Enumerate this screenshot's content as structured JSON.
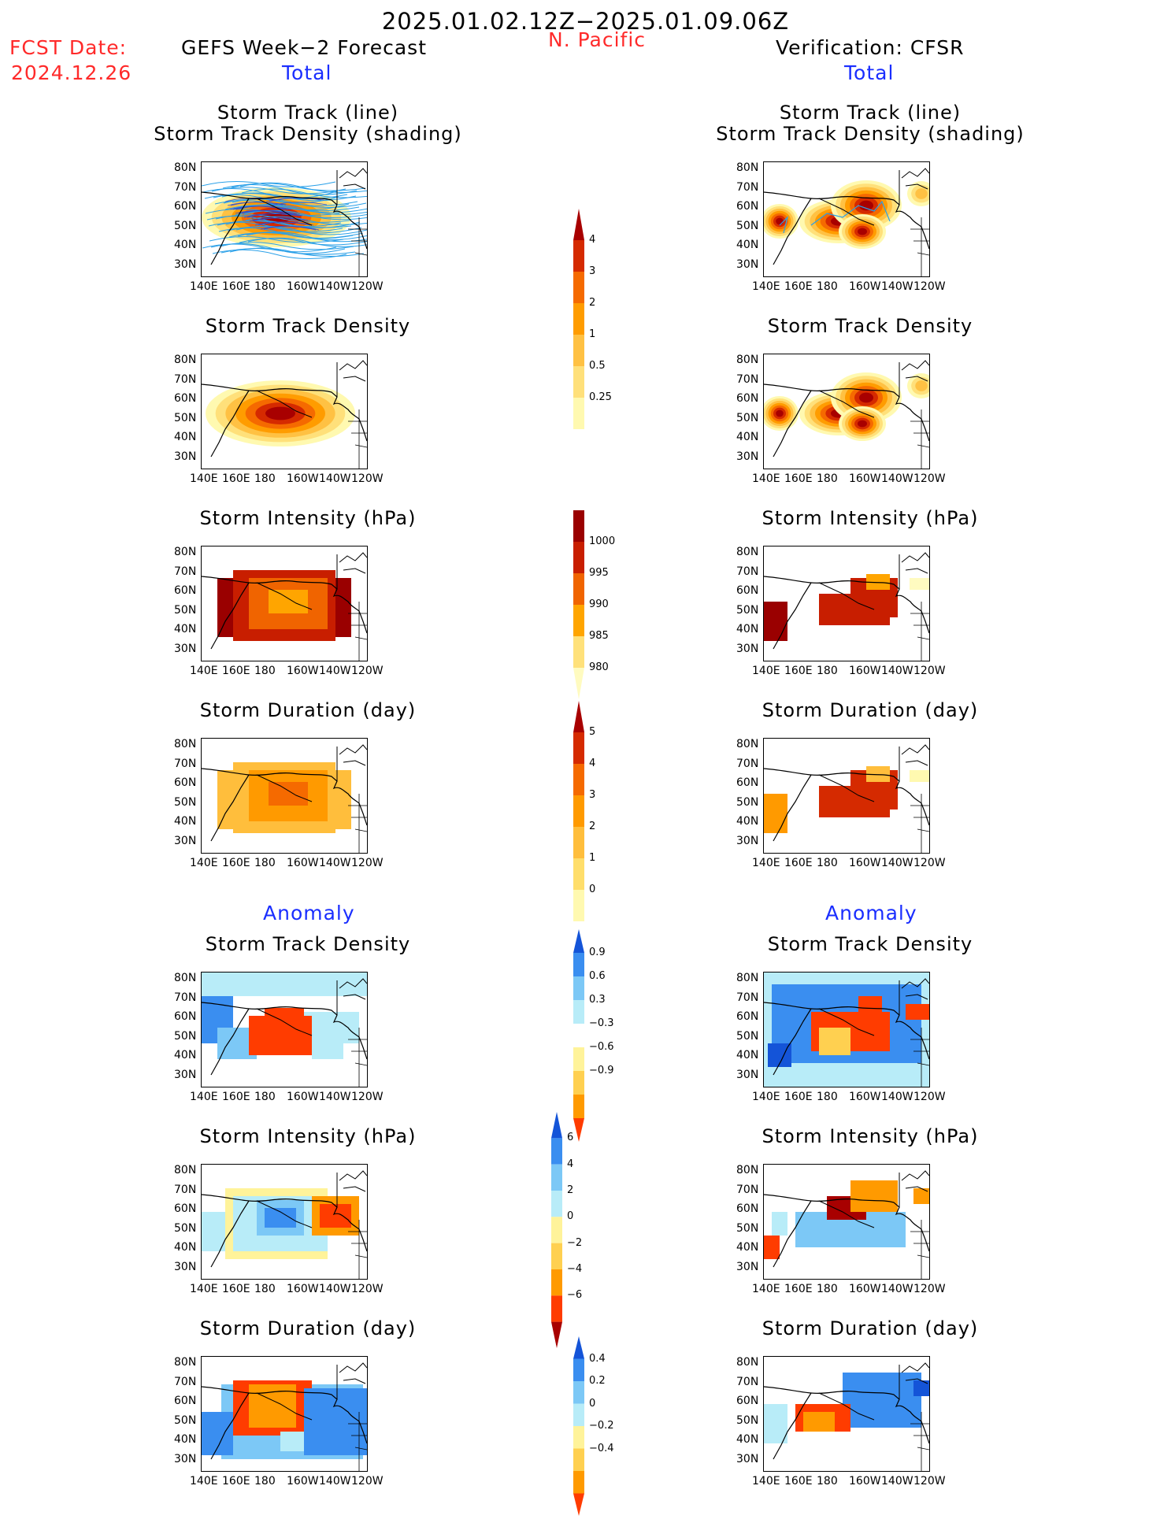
{
  "header": {
    "date_range": "2025.01.02.12Z−2025.01.09.06Z",
    "region": "N. Pacific",
    "fcst_label": "FCST Date:",
    "fcst_date": "2024.12.26",
    "left_title": "GEFS Week−2 Forecast",
    "right_title": "Verification: CFSR",
    "total_label": "Total",
    "anomaly_label": "Anomaly"
  },
  "panel_titles": {
    "track_line": "Storm Track (line)",
    "track_shading": "Storm Track Density (shading)",
    "density": "Storm Track Density",
    "intensity": "Storm Intensity (hPa)",
    "duration": "Storm Duration (day)"
  },
  "axes": {
    "lon_ticks": [
      "140E",
      "160E",
      "180",
      "160W",
      "140W",
      "120W"
    ],
    "lat_ticks": [
      "80N",
      "70N",
      "60N",
      "50N",
      "40N",
      "30N"
    ]
  },
  "colorbars": {
    "density_total": {
      "labels": [
        "4",
        "3",
        "2",
        "1",
        "0.5",
        "0.25"
      ],
      "colors": [
        "#fff9b0",
        "#ffe07a",
        "#ffc143",
        "#ff9c00",
        "#f56a00",
        "#d52a00",
        "#a80000"
      ]
    },
    "intensity_total": {
      "labels": [
        "1000",
        "995",
        "990",
        "985",
        "980"
      ],
      "colors": [
        "#fffbc0",
        "#ffe17a",
        "#ffa500",
        "#f06400",
        "#c81e00",
        "#9a0000"
      ]
    },
    "duration_total": {
      "labels": [
        "5",
        "4",
        "3",
        "2",
        "1",
        "0"
      ],
      "colors": [
        "#fff9b0",
        "#ffde6b",
        "#ffbe3c",
        "#ff9a00",
        "#f56a00",
        "#d52a00",
        "#a80000"
      ]
    },
    "density_anom": {
      "labels": [
        "0.9",
        "0.6",
        "0.3",
        "−0.3",
        "−0.6",
        "−0.9"
      ],
      "colors": [
        "#ff3c00",
        "#ff9a00",
        "#ffd050",
        "#fff39a",
        "#ffffff",
        "#b8ecf8",
        "#7cc8f6",
        "#3a8ef0",
        "#1454d8"
      ]
    },
    "intensity_anom": {
      "labels": [
        "6",
        "4",
        "2",
        "0",
        "−2",
        "−4",
        "−6"
      ],
      "colors": [
        "#a80000",
        "#ff3c00",
        "#ff9a00",
        "#ffd050",
        "#fff39a",
        "#b8ecf8",
        "#7cc8f6",
        "#3a8ef0",
        "#1454d8"
      ]
    },
    "duration_anom": {
      "labels": [
        "0.4",
        "0.2",
        "0",
        "−0.2",
        "−0.4"
      ],
      "colors": [
        "#ff3c00",
        "#ff9a00",
        "#ffd050",
        "#fff39a",
        "#b8ecf8",
        "#7cc8f6",
        "#3a8ef0",
        "#1454d8"
      ]
    }
  }
}
